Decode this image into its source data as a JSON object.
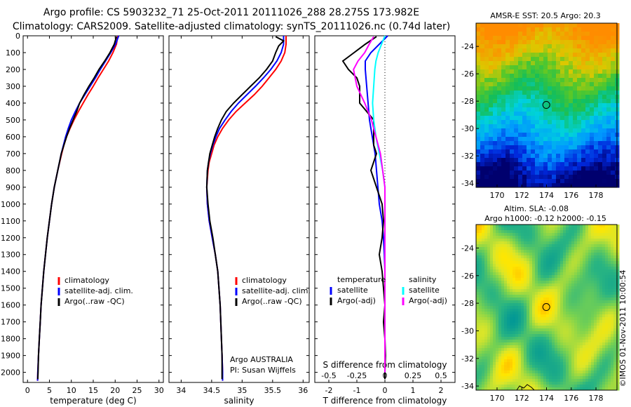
{
  "header": {
    "line1": "Argo profile: CS 5903232_71 25-Oct-2011 20111026_288 28.275S 173.982E",
    "line2": "Climatology: CARS2009. Satellite-adjusted climatology: synTS_20111026.nc (0.74d later)"
  },
  "colors": {
    "climatology": "#ff0000",
    "satellite": "#0000ff",
    "argo": "#000000",
    "sal_satellite": "#00ffff",
    "sal_argo": "#ff00ff"
  },
  "chart_data": [
    {
      "type": "line",
      "id": "temperature",
      "xlabel": "temperature (deg C)",
      "xlim": [
        -1,
        31
      ],
      "ylim": [
        2060,
        0
      ],
      "x_ticks": [
        "0",
        "5",
        "10",
        "15",
        "20",
        "25",
        "30"
      ],
      "y_ticks": [
        "0",
        "100",
        "200",
        "300",
        "400",
        "500",
        "600",
        "700",
        "800",
        "900",
        "1000",
        "1100",
        "1200",
        "1300",
        "1400",
        "1500",
        "1600",
        "1700",
        "1800",
        "1900",
        "2000"
      ],
      "y_tick_values": [
        0,
        100,
        200,
        300,
        400,
        500,
        600,
        700,
        800,
        900,
        1000,
        1100,
        1200,
        1300,
        1400,
        1500,
        1600,
        1700,
        1800,
        1900,
        2000
      ],
      "legend": [
        "climatology",
        "satellite-adj. clim.",
        "Argo(..raw -QC)"
      ],
      "series": [
        {
          "name": "climatology",
          "color": "#ff0000",
          "depth": [
            0,
            50,
            100,
            150,
            200,
            250,
            300,
            350,
            400,
            450,
            500,
            550,
            600,
            650,
            700,
            800,
            900,
            1000,
            1100,
            1200,
            1300,
            1400,
            1500,
            1600,
            1700,
            1800,
            1900,
            2000,
            2050
          ],
          "values": [
            20.6,
            20.3,
            19.5,
            18.5,
            17.3,
            16.1,
            15.0,
            13.8,
            12.7,
            11.6,
            10.6,
            9.7,
            8.9,
            8.3,
            7.8,
            6.9,
            6.1,
            5.5,
            5.0,
            4.5,
            4.1,
            3.7,
            3.4,
            3.1,
            2.9,
            2.7,
            2.5,
            2.35,
            2.3
          ]
        },
        {
          "name": "satellite-adj. clim.",
          "color": "#0000ff",
          "depth": [
            0,
            50,
            100,
            150,
            200,
            250,
            300,
            350,
            400,
            450,
            500,
            550,
            600,
            650,
            700,
            800,
            900,
            1000,
            1100,
            1200,
            1300,
            1400,
            1500,
            1600,
            1700,
            1800,
            1900,
            2000,
            2050
          ],
          "values": [
            20.8,
            20.1,
            19.0,
            17.8,
            16.6,
            15.5,
            14.3,
            13.1,
            11.9,
            10.9,
            10.0,
            9.3,
            8.7,
            8.2,
            7.7,
            6.9,
            6.1,
            5.5,
            5.0,
            4.5,
            4.1,
            3.7,
            3.4,
            3.1,
            2.9,
            2.7,
            2.5,
            2.35,
            2.3
          ]
        },
        {
          "name": "Argo(..raw -QC)",
          "color": "#000000",
          "depth": [
            5,
            50,
            100,
            150,
            200,
            250,
            300,
            350,
            400,
            450,
            500,
            550,
            600,
            650,
            700,
            800,
            900,
            1000,
            1100,
            1200,
            1300,
            1400,
            1500,
            1600,
            1700,
            1800,
            1900,
            2000,
            2040
          ],
          "values": [
            20.3,
            19.8,
            18.8,
            17.6,
            16.3,
            15.2,
            14.0,
            12.9,
            11.9,
            11.2,
            10.4,
            9.6,
            8.9,
            8.3,
            7.7,
            6.9,
            6.1,
            5.5,
            5.0,
            4.5,
            4.1,
            3.7,
            3.4,
            3.1,
            2.9,
            2.7,
            2.5,
            2.4,
            2.35
          ]
        }
      ]
    },
    {
      "type": "line",
      "id": "salinity",
      "xlabel": "salinity",
      "xlim": [
        33.8,
        36.1
      ],
      "ylim": [
        2060,
        0
      ],
      "x_ticks": [
        "34",
        "34.5",
        "35",
        "35.5",
        "36"
      ],
      "x_tick_values": [
        34,
        34.5,
        35,
        35.5,
        36
      ],
      "legend": [
        "climatology",
        "satellite-adj. clim.",
        "Argo(..raw -QC)"
      ],
      "annotation": [
        "Argo AUSTRALIA",
        "PI: Susan Wijffels"
      ],
      "series": [
        {
          "name": "climatology",
          "color": "#ff0000",
          "depth": [
            0,
            50,
            100,
            150,
            200,
            250,
            300,
            350,
            400,
            450,
            500,
            550,
            600,
            650,
            700,
            750,
            800,
            900,
            1000,
            1100,
            1200,
            1300,
            1400,
            1500,
            1600,
            1700,
            1800,
            1900,
            2000,
            2050
          ],
          "values": [
            35.72,
            35.72,
            35.7,
            35.64,
            35.55,
            35.44,
            35.33,
            35.2,
            35.05,
            34.9,
            34.78,
            34.68,
            34.6,
            34.54,
            34.5,
            34.46,
            34.44,
            34.42,
            34.43,
            34.46,
            34.51,
            34.56,
            34.6,
            34.62,
            34.64,
            34.65,
            34.66,
            34.67,
            34.68,
            34.68
          ]
        },
        {
          "name": "satellite-adj. clim.",
          "color": "#0000ff",
          "depth": [
            0,
            50,
            100,
            150,
            200,
            250,
            300,
            350,
            400,
            450,
            500,
            550,
            600,
            650,
            700,
            750,
            800,
            900,
            1000,
            1100,
            1200,
            1300,
            1400,
            1500,
            1600,
            1700,
            1800,
            1900,
            2000,
            2050
          ],
          "values": [
            35.68,
            35.68,
            35.64,
            35.57,
            35.47,
            35.35,
            35.22,
            35.08,
            34.94,
            34.82,
            34.72,
            34.63,
            34.57,
            34.52,
            34.48,
            34.45,
            34.43,
            34.42,
            34.43,
            34.46,
            34.51,
            34.56,
            34.6,
            34.62,
            34.64,
            34.65,
            34.66,
            34.67,
            34.68,
            34.68
          ]
        },
        {
          "name": "Argo(..raw -QC)",
          "color": "#000000",
          "depth": [
            5,
            30,
            60,
            100,
            150,
            200,
            250,
            300,
            350,
            400,
            450,
            500,
            550,
            600,
            650,
            700,
            750,
            800,
            900,
            1000,
            1100,
            1200,
            1300,
            1400,
            1500,
            1600,
            1700,
            1800,
            1900,
            2000,
            2040
          ],
          "values": [
            35.55,
            35.68,
            35.6,
            35.55,
            35.5,
            35.4,
            35.28,
            35.14,
            35.0,
            34.86,
            34.74,
            34.66,
            34.6,
            34.55,
            34.51,
            34.47,
            34.45,
            34.43,
            34.42,
            34.44,
            34.47,
            34.52,
            34.56,
            34.6,
            34.62,
            34.64,
            34.65,
            34.66,
            34.67,
            34.67,
            34.67
          ]
        }
      ]
    },
    {
      "type": "line",
      "id": "difference",
      "xlabel_top": "S difference from climatology",
      "xlabel": "T difference from climatology",
      "xlim": [
        -2.5,
        2.5
      ],
      "x_ticks_T": [
        "-2",
        "-1",
        "0",
        "1",
        "2"
      ],
      "x_ticks_T_values": [
        -2,
        -1,
        0,
        1,
        2
      ],
      "x_ticks_S": [
        "-0.5",
        "-0.25",
        "0",
        "0.25",
        "0.5"
      ],
      "x_ticks_S_values": [
        -0.5,
        -0.25,
        0,
        0.25,
        0.5
      ],
      "S_scale": 0.25,
      "legend_temperature": {
        "header": "temperature",
        "items": [
          "satellite",
          "Argo(-adj)"
        ]
      },
      "legend_salinity": {
        "header": "salinity",
        "items": [
          "satellite",
          "Argo(-adj)"
        ]
      },
      "series": [
        {
          "name": "temperature satellite",
          "color": "#0000ff",
          "unit": "T",
          "depth": [
            0,
            50,
            100,
            150,
            200,
            300,
            400,
            500,
            600,
            700,
            800,
            900,
            1000,
            1100,
            1200,
            1300,
            1400,
            2000
          ],
          "values": [
            0.1,
            -0.2,
            -0.5,
            -0.7,
            -0.7,
            -0.65,
            -0.6,
            -0.55,
            -0.45,
            -0.35,
            -0.3,
            -0.25,
            -0.2,
            -0.1,
            -0.05,
            -0.02,
            0,
            0
          ]
        },
        {
          "name": "temperature Argo(-adj)",
          "color": "#000000",
          "unit": "T",
          "depth": [
            5,
            50,
            100,
            150,
            200,
            250,
            300,
            400,
            500,
            600,
            650,
            700,
            800,
            900,
            1000,
            1100,
            1200,
            1300,
            1400,
            1500,
            1600,
            1700,
            1800,
            1900,
            2000,
            2040
          ],
          "values": [
            -0.3,
            -0.7,
            -1.1,
            -1.5,
            -1.3,
            -1.0,
            -0.9,
            -0.9,
            -0.4,
            -0.4,
            -0.4,
            -0.3,
            -0.5,
            -0.3,
            -0.1,
            -0.05,
            -0.1,
            -0.2,
            -0.1,
            -0.05,
            0,
            -0.05,
            0,
            0.02,
            0,
            0
          ]
        },
        {
          "name": "salinity satellite",
          "color": "#00ffff",
          "unit": "S",
          "depth": [
            0,
            50,
            100,
            150,
            200,
            300,
            400,
            500,
            600,
            700,
            800,
            900,
            1000,
            1100,
            1200,
            1300,
            1400,
            2000
          ],
          "values": [
            0.0,
            -0.03,
            -0.06,
            -0.08,
            -0.09,
            -0.1,
            -0.11,
            -0.1,
            -0.08,
            -0.05,
            -0.02,
            0,
            0,
            0,
            0,
            0,
            0,
            0
          ]
        },
        {
          "name": "salinity Argo(-adj)",
          "color": "#ff00ff",
          "unit": "S",
          "depth": [
            5,
            50,
            100,
            150,
            200,
            300,
            400,
            500,
            600,
            700,
            800,
            900,
            1000,
            1100,
            1200,
            2000
          ],
          "values": [
            -0.1,
            -0.14,
            -0.18,
            -0.24,
            -0.28,
            -0.25,
            -0.18,
            -0.12,
            -0.08,
            -0.04,
            -0.02,
            0,
            0,
            0,
            0,
            0
          ]
        }
      ]
    },
    {
      "type": "heatmap",
      "id": "sst_map",
      "title": "AMSR-E SST: 20.5  Argo: 20.3",
      "x_ticks": [
        "170",
        "172",
        "174",
        "176",
        "178"
      ],
      "x_tick_values": [
        170,
        172,
        174,
        176,
        178
      ],
      "y_ticks": [
        "-24",
        "-26",
        "-28",
        "-30",
        "-32",
        "-34"
      ],
      "y_tick_values": [
        -24,
        -26,
        -28,
        -30,
        -32,
        -34
      ],
      "xlim": [
        168.3,
        179.7
      ],
      "ylim": [
        -34.3,
        -22.3
      ],
      "marker": {
        "lon": 173.982,
        "lat": -28.275
      }
    },
    {
      "type": "heatmap",
      "id": "sla_map",
      "title_line1": "Altim. SLA: -0.08",
      "title_line2": "Argo h1000: -0.12  h2000: -0.15",
      "x_ticks": [
        "170",
        "172",
        "174",
        "176",
        "178"
      ],
      "x_tick_values": [
        170,
        172,
        174,
        176,
        178
      ],
      "y_ticks": [
        "-24",
        "-26",
        "-28",
        "-30",
        "-32",
        "-34"
      ],
      "y_tick_values": [
        -24,
        -26,
        -28,
        -30,
        -32,
        -34
      ],
      "xlim": [
        168.3,
        179.7
      ],
      "ylim": [
        -34.3,
        -22.3
      ],
      "marker": {
        "lon": 173.982,
        "lat": -28.275
      }
    }
  ],
  "footer": {
    "stamp": "©IMOS 01-Nov-2011 10:00:54"
  }
}
